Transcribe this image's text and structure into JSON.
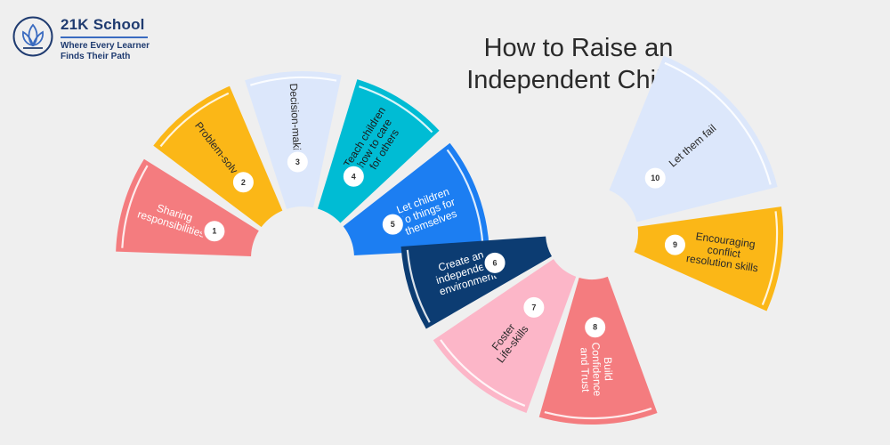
{
  "logo": {
    "name": "21K School",
    "tagline_1": "Where Every Learner",
    "tagline_2": "Finds Their Path"
  },
  "title": {
    "line1": "How to Raise an",
    "line2": "Independent Child?"
  },
  "segments": [
    {
      "number": "1",
      "lines": [
        "Sharing",
        "responsibilities"
      ],
      "fill": "#f47c7f",
      "text_color": "#ffffff"
    },
    {
      "number": "2",
      "lines": [
        "Problem-solving"
      ],
      "fill": "#fbb717",
      "text_color": "#2a2a2a"
    },
    {
      "number": "3",
      "lines": [
        "Decision-making"
      ],
      "fill": "#dce7fb",
      "text_color": "#2a2a2a"
    },
    {
      "number": "4",
      "lines": [
        "Teach children",
        "how to care",
        "for others"
      ],
      "fill": "#00bcd4",
      "text_color": "#1a1a1a"
    },
    {
      "number": "5",
      "lines": [
        "Let children",
        "do things for",
        "themselves"
      ],
      "fill": "#1c7ef2",
      "text_color": "#ffffff"
    },
    {
      "number": "6",
      "lines": [
        "Create an",
        "independent",
        "environment"
      ],
      "fill": "#0c3c72",
      "text_color": "#ffffff"
    },
    {
      "number": "7",
      "lines": [
        "Foster",
        "Life-skills"
      ],
      "fill": "#fcb6c8",
      "text_color": "#2a2a2a"
    },
    {
      "number": "8",
      "lines": [
        "Build",
        "Confidence",
        "and Trust"
      ],
      "fill": "#f47c7f",
      "text_color": "#ffffff"
    },
    {
      "number": "9",
      "lines": [
        "Encouraging",
        "conflict",
        "resolution skills"
      ],
      "fill": "#fbb717",
      "text_color": "#2a2a2a"
    },
    {
      "number": "10",
      "lines": [
        "Let them fail"
      ],
      "fill": "#dce7fb",
      "text_color": "#2a2a2a"
    }
  ]
}
